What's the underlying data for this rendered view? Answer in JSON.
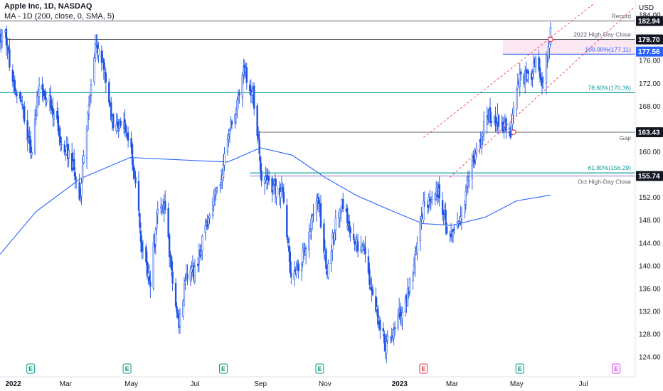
{
  "header": {
    "symbol_line": "Apple Inc, 1D, NASDAQ",
    "indicator_line": "MA - 1D (200, close, 0, SMA, 5)",
    "currency": "USD"
  },
  "colors": {
    "up": "#ffffff",
    "down": "#1e53e5",
    "candle_outline": "#1e53e5",
    "ma": "#2962ff",
    "teal_line": "#0a9c9c",
    "gray_line": "#5d606b",
    "channel": "#f23645",
    "band": "#f7d3e8",
    "last_price_bg": "#2962ff",
    "earnings": "#089981",
    "dividend_like": "#f23645",
    "future_event": "#e040fb"
  },
  "chart_data": {
    "type": "candlestick",
    "title": "Apple Inc, 1D, NASDAQ",
    "ylabel": "USD",
    "ylim": [
      122.4,
      186
    ],
    "y_ticks": [
      124,
      128,
      132,
      136,
      140,
      144,
      148,
      152,
      156,
      160,
      164,
      168,
      172,
      176,
      180,
      184
    ],
    "x_ticks": [
      {
        "label": "2022",
        "date": "2022-01-03",
        "bold": true
      },
      {
        "label": "Mar",
        "date": "2022-03-01"
      },
      {
        "label": "May",
        "date": "2022-05-02"
      },
      {
        "label": "Jul",
        "date": "2022-07-01"
      },
      {
        "label": "Sep",
        "date": "2022-09-01"
      },
      {
        "label": "Nov",
        "date": "2022-11-01"
      },
      {
        "label": "2023",
        "date": "2023-01-03",
        "bold": true
      },
      {
        "label": "Mar",
        "date": "2023-03-01"
      },
      {
        "label": "May",
        "date": "2023-05-01"
      },
      {
        "label": "Jul",
        "date": "2023-07-03"
      }
    ],
    "xlim": [
      "2021-12-29",
      "2023-08-21"
    ],
    "price_path": [
      [
        "2021-12-29",
        179.5
      ],
      [
        "2022-01-03",
        182.0
      ],
      [
        "2022-01-04",
        179.7
      ],
      [
        "2022-01-10",
        172.2
      ],
      [
        "2022-01-18",
        169.8
      ],
      [
        "2022-01-27",
        159.2
      ],
      [
        "2022-02-04",
        172.4
      ],
      [
        "2022-02-14",
        168.9
      ],
      [
        "2022-02-24",
        162.7
      ],
      [
        "2022-03-08",
        157.4
      ],
      [
        "2022-03-14",
        150.6
      ],
      [
        "2022-03-21",
        165.4
      ],
      [
        "2022-03-29",
        178.9
      ],
      [
        "2022-04-05",
        175.1
      ],
      [
        "2022-04-14",
        165.3
      ],
      [
        "2022-04-28",
        163.6
      ],
      [
        "2022-05-05",
        156.8
      ],
      [
        "2022-05-12",
        142.6
      ],
      [
        "2022-05-20",
        137.6
      ],
      [
        "2022-05-27",
        149.6
      ],
      [
        "2022-06-02",
        151.2
      ],
      [
        "2022-06-10",
        137.1
      ],
      [
        "2022-06-16",
        130.1
      ],
      [
        "2022-06-23",
        138.3
      ],
      [
        "2022-07-01",
        138.9
      ],
      [
        "2022-07-14",
        148.5
      ],
      [
        "2022-07-28",
        157.4
      ],
      [
        "2022-08-05",
        165.4
      ],
      [
        "2022-08-17",
        174.6
      ],
      [
        "2022-08-25",
        170.0
      ],
      [
        "2022-09-02",
        155.8
      ],
      [
        "2022-09-13",
        153.8
      ],
      [
        "2022-09-22",
        152.7
      ],
      [
        "2022-09-30",
        138.2
      ],
      [
        "2022-10-07",
        140.1
      ],
      [
        "2022-10-13",
        142.5
      ],
      [
        "2022-10-25",
        152.3
      ],
      [
        "2022-11-03",
        138.9
      ],
      [
        "2022-11-10",
        146.9
      ],
      [
        "2022-11-17",
        150.7
      ],
      [
        "2022-11-28",
        144.2
      ],
      [
        "2022-12-08",
        142.7
      ],
      [
        "2022-12-16",
        134.5
      ],
      [
        "2022-12-28",
        126.0
      ],
      [
        "2023-01-06",
        129.6
      ],
      [
        "2023-01-19",
        135.3
      ],
      [
        "2023-02-02",
        150.8
      ],
      [
        "2023-02-10",
        151.0
      ],
      [
        "2023-02-16",
        153.7
      ],
      [
        "2023-02-24",
        146.7
      ],
      [
        "2023-03-02",
        145.9
      ],
      [
        "2023-03-10",
        148.5
      ],
      [
        "2023-03-17",
        155.0
      ],
      [
        "2023-03-24",
        160.3
      ],
      [
        "2023-04-03",
        166.2
      ],
      [
        "2023-04-13",
        165.6
      ],
      [
        "2023-04-25",
        163.8
      ],
      [
        "2023-05-05",
        173.6
      ],
      [
        "2023-05-12",
        172.6
      ],
      [
        "2023-05-19",
        175.2
      ],
      [
        "2023-05-24",
        171.8
      ],
      [
        "2023-05-31",
        177.3
      ],
      [
        "2023-06-02",
        180.9
      ]
    ],
    "ma_path": [
      [
        "2021-12-29",
        142.0
      ],
      [
        "2022-02-01",
        149.5
      ],
      [
        "2022-03-15",
        155.3
      ],
      [
        "2022-05-01",
        159.0
      ],
      [
        "2022-06-15",
        158.6
      ],
      [
        "2022-08-01",
        158.2
      ],
      [
        "2022-09-01",
        160.7
      ],
      [
        "2022-10-01",
        159.4
      ],
      [
        "2022-11-01",
        155.5
      ],
      [
        "2022-12-01",
        152.3
      ],
      [
        "2023-01-01",
        149.8
      ],
      [
        "2023-02-01",
        147.4
      ],
      [
        "2023-03-01",
        147.1
      ],
      [
        "2023-04-01",
        148.5
      ],
      [
        "2023-05-01",
        151.4
      ],
      [
        "2023-06-02",
        152.4
      ]
    ],
    "series": [
      {
        "name": "MA - 1D (200, close, 0, SMA, 5)",
        "type": "line"
      }
    ],
    "horizontal_levels": [
      {
        "value": 182.94,
        "label": "Record",
        "style": "gray",
        "start": "2021-12-29"
      },
      {
        "value": 179.7,
        "label": "2022 High-Day Close",
        "style": "gray",
        "start": "2022-01-04"
      },
      {
        "value": 177.11,
        "label": "100.00%(177.11)",
        "style": "fib",
        "start": "2023-04-18"
      },
      {
        "value": 170.36,
        "label": "78.60%(170.36)",
        "style": "teal",
        "start": "2021-12-29"
      },
      {
        "value": 163.43,
        "label": "Gap",
        "style": "gray",
        "start": "2022-08-29"
      },
      {
        "value": 156.29,
        "label": "61.80%(156.29)",
        "style": "teal",
        "start": "2022-08-22"
      },
      {
        "value": 155.74,
        "label": "Oct High-Day Close",
        "style": "purple",
        "start": "2022-08-22"
      }
    ],
    "band": {
      "from": 177.11,
      "to": 179.7,
      "start": "2023-04-18"
    },
    "channel": {
      "lower": [
        [
          "2023-02-27",
          155.5
        ],
        [
          "2023-08-21",
          185.5
        ]
      ],
      "upper": [
        [
          "2023-02-02",
          162.5
        ],
        [
          "2023-07-13",
          186.0
        ]
      ]
    },
    "markers": [
      {
        "date": "2023-06-02",
        "value": 179.7
      },
      {
        "date": "2023-04-28",
        "value": 163.43
      }
    ],
    "price_labels": [
      {
        "value": "182.94",
        "style": "plain"
      },
      {
        "value": "179.70",
        "style": "plain"
      },
      {
        "value": "177.56",
        "style": "last"
      },
      {
        "value": "163.43",
        "style": "plain"
      },
      {
        "value": "155.74",
        "style": "plain"
      }
    ],
    "last_price": 177.56,
    "events": [
      {
        "date": "2022-01-27",
        "letter": "E",
        "kind": "earnings"
      },
      {
        "date": "2022-04-28",
        "letter": "E",
        "kind": "earnings"
      },
      {
        "date": "2022-07-28",
        "letter": "E",
        "kind": "earnings"
      },
      {
        "date": "2022-10-27",
        "letter": "E",
        "kind": "earnings"
      },
      {
        "date": "2023-02-02",
        "letter": "E",
        "kind": "dividend_like"
      },
      {
        "date": "2023-05-04",
        "letter": "E",
        "kind": "earnings"
      },
      {
        "date": "2023-08-03",
        "letter": "E",
        "kind": "future_event"
      }
    ]
  }
}
